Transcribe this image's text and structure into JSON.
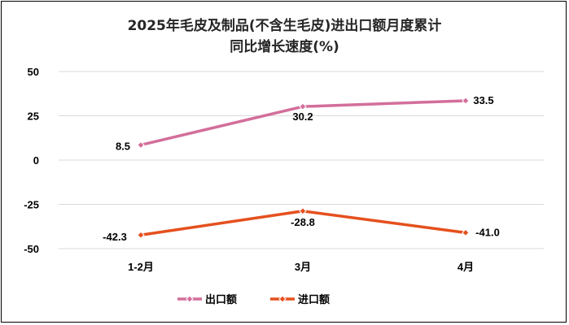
{
  "chart_data": {
    "type": "line",
    "title_lines": [
      "2025年毛皮及制品(不含生毛皮)进出口额月度累计",
      "同比增长速度(%)"
    ],
    "categories": [
      "1-2月",
      "3月",
      "4月"
    ],
    "series": [
      {
        "name": "出口额",
        "values": [
          8.5,
          30.2,
          33.5
        ],
        "color": "#D36E9A",
        "labels": [
          "8.5",
          "30.2",
          "33.5"
        ]
      },
      {
        "name": "进口额",
        "values": [
          -42.3,
          -28.8,
          -41.0
        ],
        "color": "#E5501E",
        "labels": [
          "-42.3",
          "-28.8",
          "-41.0"
        ]
      }
    ],
    "yticks": [
      50,
      25,
      0,
      -25,
      -50
    ],
    "ytick_labels": [
      "50",
      "25",
      "0",
      "-25",
      "-50"
    ],
    "ylim": [
      -50,
      50
    ],
    "grid": true,
    "legend": "bottom",
    "marker": "diamond"
  }
}
